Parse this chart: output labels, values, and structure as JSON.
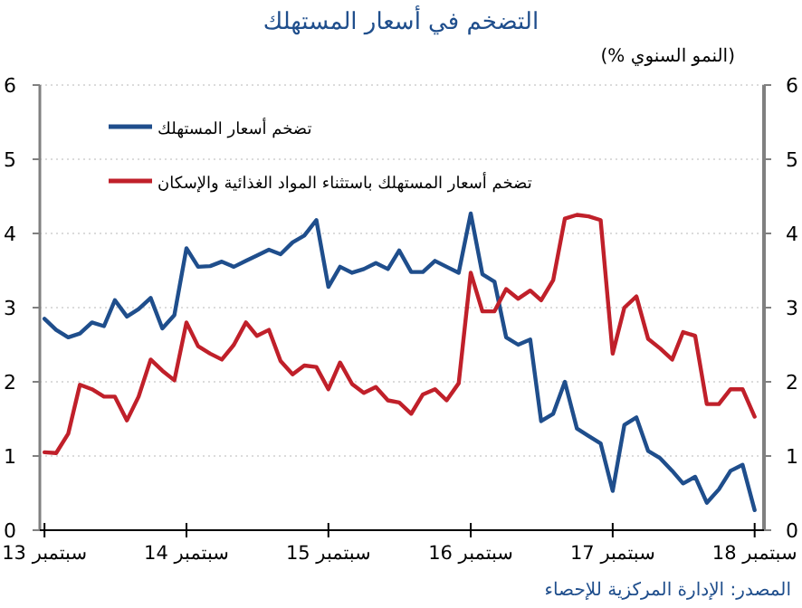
{
  "chart_data": {
    "type": "line",
    "title": "التضخم في أسعار المستهلك",
    "subtitle": "(النمو السنوي %)",
    "annotations": [
      "المصدر: الإدارة المركزية للإحصاء"
    ],
    "x": [
      "2013-09",
      "2013-10",
      "2013-11",
      "2013-12",
      "2014-01",
      "2014-02",
      "2014-03",
      "2014-04",
      "2014-05",
      "2014-06",
      "2014-07",
      "2014-08",
      "2014-09",
      "2014-10",
      "2014-11",
      "2014-12",
      "2015-01",
      "2015-02",
      "2015-03",
      "2015-04",
      "2015-05",
      "2015-06",
      "2015-07",
      "2015-08",
      "2015-09",
      "2015-10",
      "2015-11",
      "2015-12",
      "2016-01",
      "2016-02",
      "2016-03",
      "2016-04",
      "2016-05",
      "2016-06",
      "2016-07",
      "2016-08",
      "2016-09",
      "2016-10",
      "2016-11",
      "2016-12",
      "2017-01",
      "2017-02",
      "2017-03",
      "2017-04",
      "2017-05",
      "2017-06",
      "2017-07",
      "2017-08",
      "2017-09",
      "2017-10",
      "2017-11",
      "2017-12",
      "2018-01",
      "2018-02",
      "2018-03",
      "2018-04",
      "2018-05",
      "2018-06",
      "2018-07",
      "2018-08",
      "2018-09"
    ],
    "series": [
      {
        "name": "تضخم أسعار المستهلك",
        "color": "#1f4e8c",
        "values": [
          2.85,
          2.7,
          2.6,
          2.65,
          2.8,
          2.75,
          3.1,
          2.88,
          2.98,
          3.13,
          2.72,
          2.9,
          3.8,
          3.55,
          3.56,
          3.62,
          3.55,
          3.63,
          3.7,
          3.78,
          3.72,
          3.88,
          3.97,
          4.18,
          3.28,
          3.55,
          3.47,
          3.52,
          3.6,
          3.52,
          3.77,
          3.48,
          3.48,
          3.63,
          3.55,
          3.47,
          4.27,
          3.45,
          3.35,
          2.6,
          2.5,
          2.57,
          1.47,
          1.57,
          2.0,
          1.37,
          1.27,
          1.17,
          0.53,
          1.42,
          1.52,
          1.07,
          0.97,
          0.8,
          0.63,
          0.72,
          0.37,
          0.55,
          0.8,
          0.88,
          0.27
        ]
      },
      {
        "name": "تضخم أسعار المستهلك باستثناء المواد الغذائية والإسكان",
        "color": "#c0202a",
        "values": [
          1.05,
          1.04,
          1.3,
          1.96,
          1.9,
          1.8,
          1.8,
          1.48,
          1.8,
          2.3,
          2.15,
          2.02,
          2.8,
          2.48,
          2.38,
          2.3,
          2.5,
          2.8,
          2.62,
          2.7,
          2.28,
          2.1,
          2.22,
          2.2,
          1.9,
          2.26,
          1.97,
          1.85,
          1.93,
          1.75,
          1.72,
          1.57,
          1.83,
          1.9,
          1.75,
          1.98,
          3.47,
          2.95,
          2.95,
          3.25,
          3.12,
          3.23,
          3.1,
          3.37,
          4.2,
          4.25,
          4.23,
          4.18,
          2.38,
          3.0,
          3.15,
          2.58,
          2.45,
          2.3,
          2.67,
          2.62,
          1.7,
          1.7,
          1.9,
          1.9,
          1.53
        ]
      }
    ],
    "xlim": [
      "2013-08-20",
      "2018-09-25"
    ],
    "xticks": [
      {
        "value": "2013-09",
        "label": "سبتمبر 13"
      },
      {
        "value": "2014-09",
        "label": "سبتمبر 14"
      },
      {
        "value": "2015-09",
        "label": "سبتمبر 15"
      },
      {
        "value": "2016-09",
        "label": "سبتمبر 16"
      },
      {
        "value": "2017-09",
        "label": "سبتمبر 17"
      },
      {
        "value": "2018-09",
        "label": "سبتمبر 18"
      }
    ],
    "ylim": [
      0,
      6
    ],
    "yticks": [
      0,
      1,
      2,
      3,
      4,
      5,
      6
    ],
    "y2lim": [
      0,
      6
    ],
    "y2ticks": [
      0,
      1,
      2,
      3,
      4,
      5,
      6
    ],
    "grid": "y",
    "legend": "top left"
  }
}
